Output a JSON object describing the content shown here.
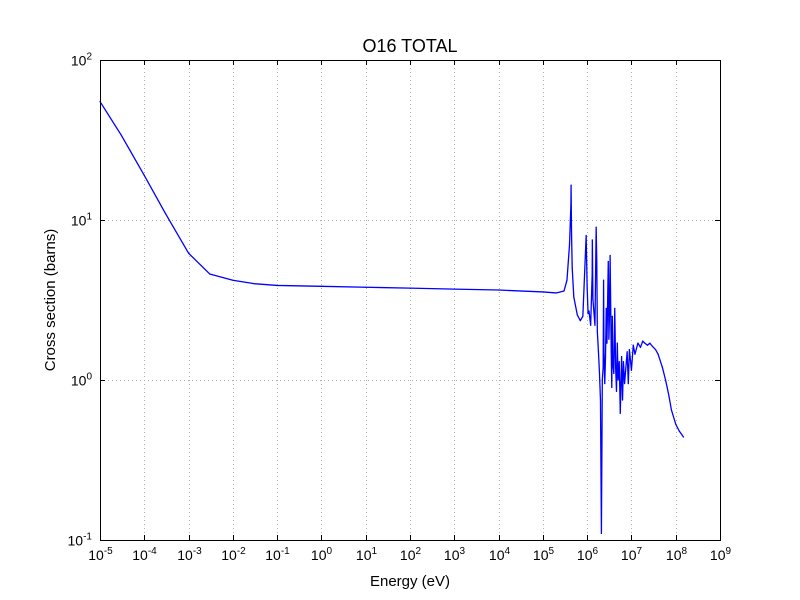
{
  "chart_data": {
    "type": "line",
    "title": "O16 TOTAL",
    "xlabel": "Energy (eV)",
    "ylabel": "Cross section (barns)",
    "xscale": "log",
    "yscale": "log",
    "xlim": [
      1e-05,
      1000000000.0
    ],
    "ylim": [
      0.1,
      100
    ],
    "grid": true,
    "line_color": "#0000ff",
    "x_ticks": [
      {
        "base": "10",
        "exp": "-5"
      },
      {
        "base": "10",
        "exp": "-4"
      },
      {
        "base": "10",
        "exp": "-3"
      },
      {
        "base": "10",
        "exp": "-2"
      },
      {
        "base": "10",
        "exp": "-1"
      },
      {
        "base": "10",
        "exp": "0"
      },
      {
        "base": "10",
        "exp": "1"
      },
      {
        "base": "10",
        "exp": "2"
      },
      {
        "base": "10",
        "exp": "3"
      },
      {
        "base": "10",
        "exp": "4"
      },
      {
        "base": "10",
        "exp": "5"
      },
      {
        "base": "10",
        "exp": "6"
      },
      {
        "base": "10",
        "exp": "7"
      },
      {
        "base": "10",
        "exp": "8"
      },
      {
        "base": "10",
        "exp": "9"
      }
    ],
    "y_ticks": [
      {
        "base": "10",
        "exp": "-1"
      },
      {
        "base": "10",
        "exp": "0"
      },
      {
        "base": "10",
        "exp": "1"
      },
      {
        "base": "10",
        "exp": "2"
      }
    ],
    "series": [
      {
        "x": [
          1e-05,
          3e-05,
          0.0001,
          0.0003,
          0.001,
          0.003,
          0.01,
          0.03,
          0.1,
          1,
          10,
          100,
          1000,
          10000.0,
          100000.0,
          200000.0,
          300000.0,
          350000.0,
          400000.0,
          430000.0,
          434000.0,
          438000.0,
          445000.0,
          460000.0,
          500000.0,
          600000.0,
          700000.0,
          800000.0,
          950000.0,
          1000000.0,
          1050000.0,
          1100000.0,
          1200000.0,
          1300000.0,
          1310000.0,
          1350000.0,
          1500000.0,
          1600000.0,
          1650000.0,
          1700000.0,
          1800000.0,
          1900000.0,
          2000000.0,
          2100000.0,
          2200000.0,
          2300000.0,
          2350000.0,
          2400000.0,
          2500000.0,
          2600000.0,
          2700000.0,
          2800000.0,
          3000000.0,
          3100000.0,
          3200000.0,
          3300000.0,
          3500000.0,
          3600000.0,
          3700000.0,
          3800000.0,
          4000000.0,
          4200000.0,
          4400000.0,
          4600000.0,
          4800000.0,
          5000000.0,
          5300000.0,
          5600000.0,
          6000000.0,
          6300000.0,
          6600000.0,
          7000000.0,
          7500000.0,
          8000000.0,
          8500000.0,
          9000000.0,
          10000000.0,
          11000000.0,
          12000000.0,
          14000000.0,
          16000000.0,
          18000000.0,
          20000000.0,
          23000000.0,
          26000000.0,
          30000000.0,
          35000000.0,
          40000000.0,
          50000000.0,
          60000000.0,
          70000000.0,
          80000000.0,
          100000000.0,
          120000000.0,
          150000000.0
        ],
        "y": [
          55,
          34,
          19,
          11,
          6.2,
          4.6,
          4.2,
          4.0,
          3.9,
          3.85,
          3.8,
          3.75,
          3.7,
          3.65,
          3.55,
          3.5,
          3.6,
          4.2,
          7.0,
          12.5,
          16.5,
          12.0,
          8.0,
          5.0,
          3.3,
          2.55,
          2.35,
          2.5,
          8.0,
          3.8,
          2.6,
          2.7,
          2.2,
          4.6,
          7.5,
          3.2,
          2.2,
          9.0,
          5.5,
          2.0,
          1.5,
          1.1,
          0.75,
          0.11,
          1.0,
          1.2,
          4.2,
          1.5,
          0.95,
          1.4,
          2.8,
          1.7,
          5.5,
          1.8,
          2.6,
          6.0,
          1.5,
          0.9,
          2.5,
          1.3,
          1.1,
          2.8,
          1.2,
          0.85,
          1.7,
          1.0,
          1.3,
          0.62,
          1.4,
          0.75,
          1.3,
          0.95,
          1.2,
          1.5,
          0.95,
          1.55,
          1.15,
          1.65,
          1.45,
          1.7,
          1.6,
          1.75,
          1.7,
          1.65,
          1.7,
          1.62,
          1.55,
          1.45,
          1.2,
          0.98,
          0.8,
          0.65,
          0.53,
          0.48,
          0.44
        ]
      }
    ]
  }
}
